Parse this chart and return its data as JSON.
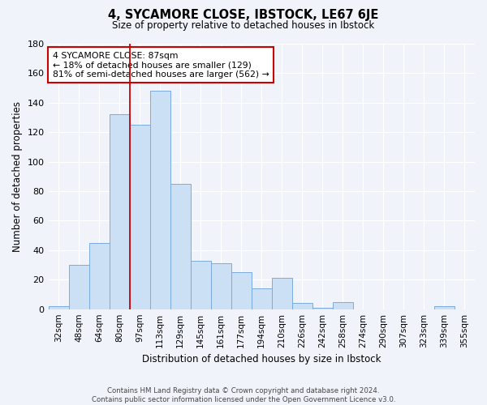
{
  "title": "4, SYCAMORE CLOSE, IBSTOCK, LE67 6JE",
  "subtitle": "Size of property relative to detached houses in Ibstock",
  "xlabel": "Distribution of detached houses by size in Ibstock",
  "ylabel": "Number of detached properties",
  "bar_labels": [
    "32sqm",
    "48sqm",
    "64sqm",
    "80sqm",
    "97sqm",
    "113sqm",
    "129sqm",
    "145sqm",
    "161sqm",
    "177sqm",
    "194sqm",
    "210sqm",
    "226sqm",
    "242sqm",
    "258sqm",
    "274sqm",
    "290sqm",
    "307sqm",
    "323sqm",
    "339sqm",
    "355sqm"
  ],
  "bar_values": [
    2,
    30,
    45,
    132,
    125,
    148,
    85,
    33,
    31,
    25,
    14,
    21,
    4,
    1,
    5,
    0,
    0,
    0,
    0,
    2,
    0
  ],
  "bar_color": "#cce0f5",
  "bar_edge_color": "#7aace0",
  "vline_x": 3,
  "vline_color": "#cc0000",
  "annotation_title": "4 SYCAMORE CLOSE: 87sqm",
  "annotation_line1": "← 18% of detached houses are smaller (129)",
  "annotation_line2": "81% of semi-detached houses are larger (562) →",
  "annotation_box_color": "#ffffff",
  "annotation_box_edge": "#cc0000",
  "footer_line1": "Contains HM Land Registry data © Crown copyright and database right 2024.",
  "footer_line2": "Contains public sector information licensed under the Open Government Licence v3.0.",
  "ylim": [
    0,
    180
  ],
  "yticks": [
    0,
    20,
    40,
    60,
    80,
    100,
    120,
    140,
    160,
    180
  ],
  "background_color": "#f0f4fa",
  "grid_color": "#ffffff"
}
